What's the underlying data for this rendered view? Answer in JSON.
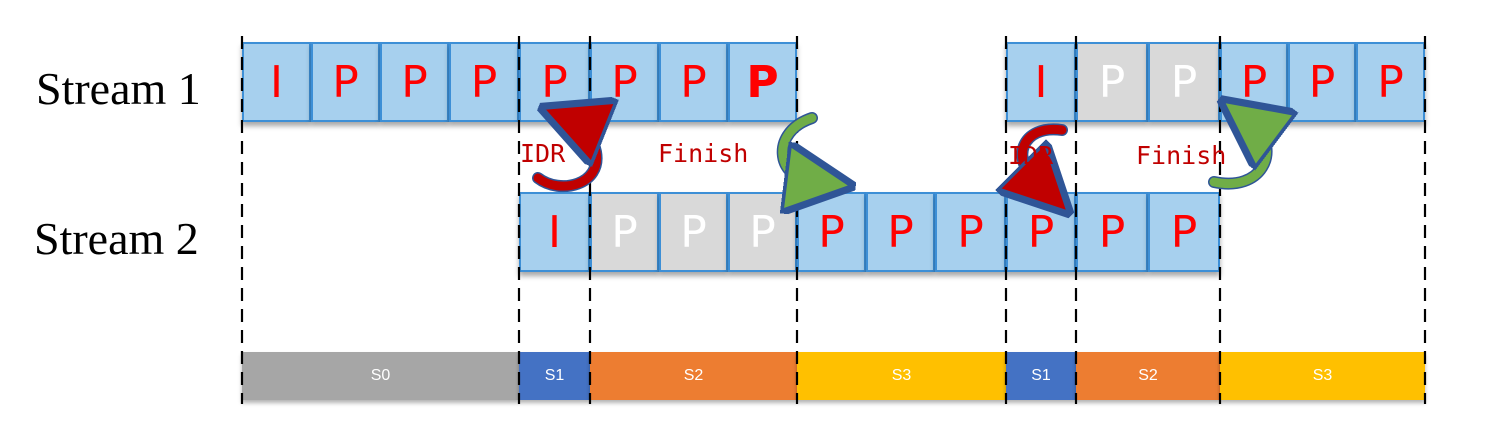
{
  "streams": {
    "stream1_label": "Stream 1",
    "stream2_label": "Stream 2"
  },
  "stream1_frames": [
    {
      "type": "I",
      "state": "active"
    },
    {
      "type": "P",
      "state": "active"
    },
    {
      "type": "P",
      "state": "active"
    },
    {
      "type": "P",
      "state": "active"
    },
    {
      "type": "P",
      "state": "active"
    },
    {
      "type": "P",
      "state": "active"
    },
    {
      "type": "P",
      "state": "active"
    },
    {
      "type": "P",
      "state": "active",
      "bold": true
    },
    {
      "type": "I",
      "state": "active"
    },
    {
      "type": "P",
      "state": "skipped"
    },
    {
      "type": "P",
      "state": "skipped"
    },
    {
      "type": "P",
      "state": "active"
    },
    {
      "type": "P",
      "state": "active"
    },
    {
      "type": "P",
      "state": "active"
    }
  ],
  "stream2_frames": [
    {
      "type": "I",
      "state": "active"
    },
    {
      "type": "P",
      "state": "skipped"
    },
    {
      "type": "P",
      "state": "skipped"
    },
    {
      "type": "P",
      "state": "skipped"
    },
    {
      "type": "P",
      "state": "active"
    },
    {
      "type": "P",
      "state": "active"
    },
    {
      "type": "P",
      "state": "active"
    },
    {
      "type": "P",
      "state": "active"
    },
    {
      "type": "P",
      "state": "active"
    },
    {
      "type": "P",
      "state": "active"
    }
  ],
  "annotations": {
    "idr_1": "IDR",
    "finish_1": "Finish",
    "idr_2": "IDR",
    "finish_2": "Finish"
  },
  "states": [
    {
      "label": "S0",
      "color": "#a6a6a6"
    },
    {
      "label": "S1",
      "color": "#4472c4"
    },
    {
      "label": "S2",
      "color": "#ed7d31"
    },
    {
      "label": "S3",
      "color": "#ffc000"
    },
    {
      "label": "S1",
      "color": "#4472c4"
    },
    {
      "label": "S2",
      "color": "#ed7d31"
    },
    {
      "label": "S3",
      "color": "#ffc000"
    }
  ],
  "colors": {
    "frame_fill": "#a7d0ee",
    "frame_border": "#3d8fd6",
    "frame_text": "#ff0000",
    "skipped_fill": "#d9d9d9",
    "idr_arrow": "#c00000",
    "finish_arrow": "#70ad47"
  }
}
